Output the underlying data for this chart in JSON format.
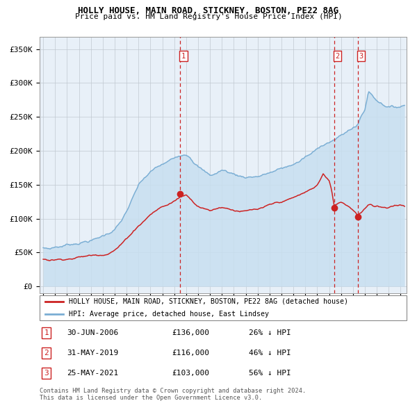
{
  "title": "HOLLY HOUSE, MAIN ROAD, STICKNEY, BOSTON, PE22 8AG",
  "subtitle": "Price paid vs. HM Land Registry's House Price Index (HPI)",
  "hpi_color": "#7aaed4",
  "hpi_fill": "#c8dff0",
  "price_color": "#cc2222",
  "background_color": "#e8f0f8",
  "grid_color": "#c0c8d0",
  "sale_points": [
    {
      "year": 2006.5,
      "price": 136000,
      "label": "1"
    },
    {
      "year": 2019.42,
      "price": 116000,
      "label": "2"
    },
    {
      "year": 2021.39,
      "price": 103000,
      "label": "3"
    }
  ],
  "sale_info": [
    {
      "num": "1",
      "date": "30-JUN-2006",
      "price": "£136,000",
      "pct": "26% ↓ HPI"
    },
    {
      "num": "2",
      "date": "31-MAY-2019",
      "price": "£116,000",
      "pct": "46% ↓ HPI"
    },
    {
      "num": "3",
      "date": "25-MAY-2021",
      "price": "£103,000",
      "pct": "56% ↓ HPI"
    }
  ],
  "legend_line1": "HOLLY HOUSE, MAIN ROAD, STICKNEY, BOSTON, PE22 8AG (detached house)",
  "legend_line2": "HPI: Average price, detached house, East Lindsey",
  "footer1": "Contains HM Land Registry data © Crown copyright and database right 2024.",
  "footer2": "This data is licensed under the Open Government Licence v3.0.",
  "yticks": [
    0,
    50000,
    100000,
    150000,
    200000,
    250000,
    300000,
    350000
  ],
  "ytick_labels": [
    "£0",
    "£50K",
    "£100K",
    "£150K",
    "£200K",
    "£250K",
    "£300K",
    "£350K"
  ],
  "xmin": 1994.7,
  "xmax": 2025.5
}
